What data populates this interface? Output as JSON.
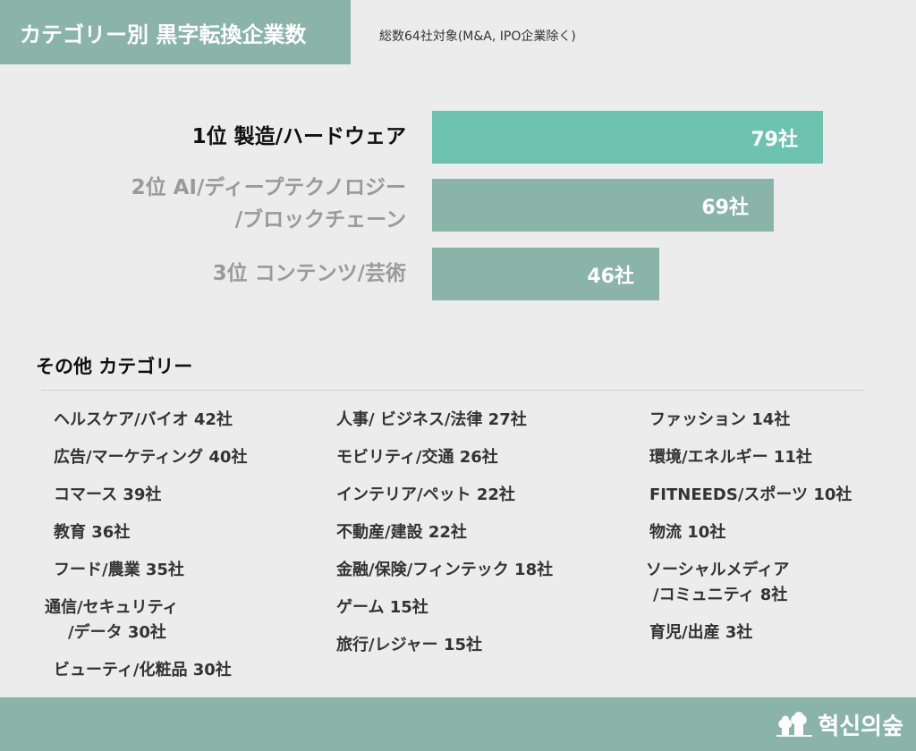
{
  "header": {
    "title": "カテゴリー別 黒字転換企業数",
    "subtitle": "総数64社対象(M&A, IPO企業除く)"
  },
  "chart_data": {
    "type": "bar",
    "orientation": "horizontal",
    "categories": [
      "1位 製造/ハードウェア",
      "2位 AI/ディープテクノロジー/ブロックチェーン",
      "3位 コンテンツ/芸術"
    ],
    "values": [
      79,
      69,
      46
    ],
    "value_labels": [
      "79社",
      "69社",
      "46社"
    ],
    "bar_colors": [
      "#6ec2b0",
      "#8bb4a8",
      "#8bb4a8"
    ],
    "xlim": [
      0,
      85
    ]
  },
  "rank_labels": {
    "r1": "1位 製造/ハードウェア",
    "r2_line1": "2位 AI/ディープテクノロジー",
    "r2_line2": "/ブロックチェーン",
    "r3": "3位 コンテンツ/芸術"
  },
  "others": {
    "title": "その他 カテゴリー",
    "col1": [
      "ヘルスケア/バイオ 42社",
      "広告/マーケティング 40社",
      "コマース 39社",
      "教育 36社",
      "フード/農業 35社",
      "通信/セキュリティ",
      "/データ 30社",
      "ビューティ/化粧品 30社"
    ],
    "col2": [
      "人事/ ビジネス/法律 27社",
      "モビリティ/交通 26社",
      "インテリア/ペット 22社",
      "不動産/建設 22社",
      "金融/保険/フィンテック 18社",
      "ゲーム 15社",
      "旅行/レジャー 15社"
    ],
    "col3": [
      "ファッション 14社",
      "環境/エネルギー 11社",
      "FITNEEDS/スポーツ 10社",
      "物流 10社",
      "ソーシャルメディア",
      "/コミュニティ 8社",
      "育児/出産 3社"
    ]
  },
  "footer": {
    "logo_text": "혁신의숲",
    "logo_icon": "forest-icon"
  }
}
